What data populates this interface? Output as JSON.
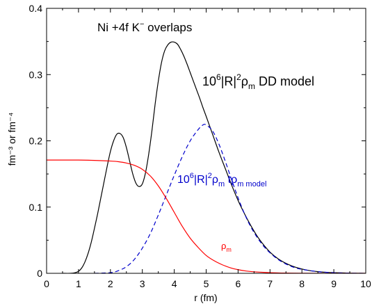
{
  "chart_data": {
    "type": "line",
    "title": "",
    "xlabel": "r (fm)",
    "ylabel": "fm⁻³ or fm⁻⁴",
    "xlim": [
      0,
      10
    ],
    "ylim": [
      0,
      0.4
    ],
    "x_ticks": [
      "0",
      "1",
      "2",
      "3",
      "4",
      "5",
      "6",
      "7",
      "8",
      "9",
      "10"
    ],
    "y_ticks": [
      "0",
      "0.1",
      "0.2",
      "0.3",
      "0.4"
    ],
    "grid": false,
    "series": [
      {
        "name": "10⁶|R|²ρm DD model",
        "color": "#000000",
        "style": "solid",
        "x": [
          0.5,
          0.75,
          0.9,
          1.0,
          1.1,
          1.2,
          1.3,
          1.4,
          1.5,
          1.6,
          1.7,
          1.8,
          1.9,
          2.0,
          2.1,
          2.2,
          2.3,
          2.4,
          2.5,
          2.6,
          2.7,
          2.8,
          2.9,
          3.0,
          3.1,
          3.2,
          3.3,
          3.4,
          3.5,
          3.6,
          3.7,
          3.8,
          3.9,
          4.0,
          4.1,
          4.2,
          4.3,
          4.4,
          4.5,
          4.6,
          4.7,
          4.8,
          4.9,
          5.0,
          5.2,
          5.4,
          5.6,
          5.8,
          6.0,
          6.2,
          6.4,
          6.6,
          6.8,
          7.0,
          7.25,
          7.5,
          7.75,
          8.0,
          8.25,
          8.5,
          8.75,
          9.0,
          9.5,
          10.0
        ],
        "y": [
          0.0,
          0.0,
          0.001,
          0.003,
          0.008,
          0.017,
          0.03,
          0.047,
          0.068,
          0.09,
          0.114,
          0.138,
          0.162,
          0.184,
          0.2,
          0.21,
          0.211,
          0.205,
          0.19,
          0.17,
          0.15,
          0.136,
          0.131,
          0.135,
          0.152,
          0.18,
          0.215,
          0.255,
          0.29,
          0.318,
          0.336,
          0.345,
          0.349,
          0.349,
          0.346,
          0.338,
          0.328,
          0.316,
          0.303,
          0.29,
          0.277,
          0.264,
          0.25,
          0.237,
          0.21,
          0.183,
          0.158,
          0.133,
          0.11,
          0.09,
          0.072,
          0.056,
          0.043,
          0.032,
          0.022,
          0.015,
          0.01,
          0.0065,
          0.004,
          0.0025,
          0.0015,
          0.001,
          0.0003,
          0.0
        ]
      },
      {
        "name": "10⁶|R|²ρm tρm model",
        "color": "#0000cc",
        "style": "dashed",
        "x": [
          1.5,
          2.0,
          2.25,
          2.5,
          2.75,
          3.0,
          3.25,
          3.5,
          3.75,
          4.0,
          4.25,
          4.5,
          4.75,
          4.9,
          5.0,
          5.2,
          5.4,
          5.6,
          5.8,
          6.0,
          6.2,
          6.4,
          6.6,
          6.8,
          7.0,
          7.25,
          7.5,
          7.75,
          8.0,
          8.5,
          9.0,
          9.5,
          10.0
        ],
        "y": [
          0.0,
          0.001,
          0.004,
          0.01,
          0.021,
          0.038,
          0.06,
          0.088,
          0.118,
          0.148,
          0.176,
          0.2,
          0.217,
          0.224,
          0.224,
          0.215,
          0.195,
          0.169,
          0.141,
          0.114,
          0.09,
          0.07,
          0.054,
          0.041,
          0.031,
          0.021,
          0.014,
          0.009,
          0.006,
          0.0025,
          0.001,
          0.0003,
          0.0
        ]
      },
      {
        "name": "ρm",
        "color": "#ff0000",
        "style": "solid",
        "x": [
          0.0,
          0.5,
          1.0,
          1.5,
          2.0,
          2.25,
          2.5,
          2.75,
          3.0,
          3.25,
          3.5,
          3.75,
          4.0,
          4.25,
          4.5,
          4.75,
          5.0,
          5.25,
          5.5,
          5.75,
          6.0,
          6.25,
          6.5,
          7.0,
          7.5,
          8.0,
          9.0,
          10.0
        ],
        "y": [
          0.171,
          0.171,
          0.171,
          0.1705,
          0.1695,
          0.1685,
          0.1665,
          0.163,
          0.157,
          0.147,
          0.132,
          0.113,
          0.092,
          0.071,
          0.053,
          0.039,
          0.027,
          0.019,
          0.013,
          0.0085,
          0.0055,
          0.0035,
          0.0023,
          0.001,
          0.0004,
          0.0002,
          0.0,
          0.0
        ]
      }
    ],
    "annotations": {
      "header": {
        "main": "Ni +4f K",
        "sup": "−",
        "tail": " overlaps"
      },
      "dd_label": {
        "pre": "10",
        "sup1": "6",
        "mid": "|R|",
        "sup2": "2",
        "rho": "ρ",
        "sub": "m",
        "tail": "  DD  model"
      },
      "t_label": {
        "pre": "10",
        "sup1": "6",
        "mid": "|R|",
        "sup2": "2",
        "rho": "ρ",
        "sub": "m",
        "tail": "  tρ",
        "sub2": "m model"
      },
      "rho_label": {
        "rho": "ρ",
        "sub": "m"
      }
    }
  }
}
